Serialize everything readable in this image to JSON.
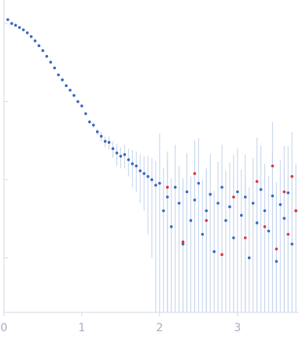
{
  "chart_data": {
    "type": "scatter",
    "log_y": true,
    "ytick_labels": false,
    "xlim": [
      0,
      3.79
    ],
    "ylim": [
      0.0002,
      2
    ],
    "xticks": [
      0,
      1,
      2,
      3
    ],
    "yticks": [
      0.001,
      0.01,
      0.1,
      1
    ],
    "axis_color": "#cfd8e6",
    "error_color": "#c3d3ea",
    "series": [
      {
        "color": "#3a68c0",
        "x": [
          0.05,
          0.1,
          0.15,
          0.2,
          0.25,
          0.3,
          0.35,
          0.4,
          0.45,
          0.5,
          0.55,
          0.6,
          0.65,
          0.7,
          0.75,
          0.8,
          0.85,
          0.9,
          0.95,
          1.0,
          1.05,
          1.1,
          1.15,
          1.2,
          1.25,
          1.3,
          1.35,
          1.4,
          1.45,
          1.5,
          1.55,
          1.6,
          1.65,
          1.7,
          1.75,
          1.8,
          1.85,
          1.9,
          1.95,
          2.0,
          2.05,
          2.1,
          2.15,
          2.2,
          2.25,
          2.3,
          2.35,
          2.4,
          2.45,
          2.5,
          2.55,
          2.6,
          2.65,
          2.7,
          2.75,
          2.8,
          2.85,
          2.9,
          2.95,
          3.0,
          3.05,
          3.1,
          3.15,
          3.2,
          3.25,
          3.3,
          3.35,
          3.4,
          3.45,
          3.5,
          3.55,
          3.6,
          3.65,
          3.7,
          3.75
        ],
        "values": [
          1.12,
          1.0,
          0.95,
          0.89,
          0.83,
          0.76,
          0.68,
          0.6,
          0.52,
          0.45,
          0.38,
          0.32,
          0.27,
          0.22,
          0.19,
          0.16,
          0.14,
          0.12,
          0.1,
          0.088,
          0.07,
          0.055,
          0.05,
          0.041,
          0.036,
          0.031,
          0.03,
          0.025,
          0.022,
          0.02,
          0.021,
          0.018,
          0.016,
          0.015,
          0.013,
          0.012,
          0.011,
          0.01,
          0.0085,
          0.009,
          0.004,
          0.006,
          0.0025,
          0.008,
          0.005,
          0.0015,
          0.007,
          0.003,
          0.0055,
          0.009,
          0.002,
          0.004,
          0.0065,
          0.0012,
          0.005,
          0.008,
          0.003,
          0.0045,
          0.0018,
          0.007,
          0.0035,
          0.006,
          0.001,
          0.005,
          0.0028,
          0.0075,
          0.004,
          0.0022,
          0.0062,
          0.0009,
          0.0048,
          0.0032,
          0.0068,
          0.0015,
          0.004
        ],
        "errors": [
          0.01,
          0.008,
          0.007,
          0.006,
          0.005,
          0.005,
          0.004,
          0.004,
          0.004,
          0.003,
          0.003,
          0.003,
          0.003,
          0.002,
          0.002,
          0.002,
          0.002,
          0.002,
          0.002,
          0.002,
          0.003,
          0.003,
          0.004,
          0.004,
          0.005,
          0.005,
          0.006,
          0.006,
          0.007,
          0.006,
          0.007,
          0.007,
          0.008,
          0.008,
          0.008,
          0.008,
          0.009,
          0.009,
          0.009,
          0.03,
          0.01,
          0.012,
          0.008,
          0.02,
          0.01,
          0.009,
          0.015,
          0.008,
          0.012,
          0.025,
          0.008,
          0.01,
          0.015,
          0.006,
          0.012,
          0.02,
          0.01,
          0.012,
          0.008,
          0.018,
          0.01,
          0.015,
          0.007,
          0.014,
          0.01,
          0.02,
          0.012,
          0.009,
          0.016,
          0.006,
          0.013,
          0.011,
          0.02,
          0.009,
          0.012
        ]
      },
      {
        "color": "#e0323a",
        "x": [
          2.1,
          2.3,
          2.45,
          2.6,
          2.8,
          2.95,
          3.1,
          3.25,
          3.35,
          3.45,
          3.5,
          3.6,
          3.65,
          3.7,
          3.75
        ],
        "values": [
          0.008,
          0.0016,
          0.012,
          0.003,
          0.0011,
          0.006,
          0.0018,
          0.0095,
          0.0025,
          0.015,
          0.0013,
          0.007,
          0.002,
          0.011,
          0.004
        ],
        "errors": [
          0.015,
          0.008,
          0.02,
          0.01,
          0.007,
          0.015,
          0.009,
          0.025,
          0.01,
          0.04,
          0.008,
          0.02,
          0.01,
          0.03,
          0.012
        ]
      }
    ]
  }
}
